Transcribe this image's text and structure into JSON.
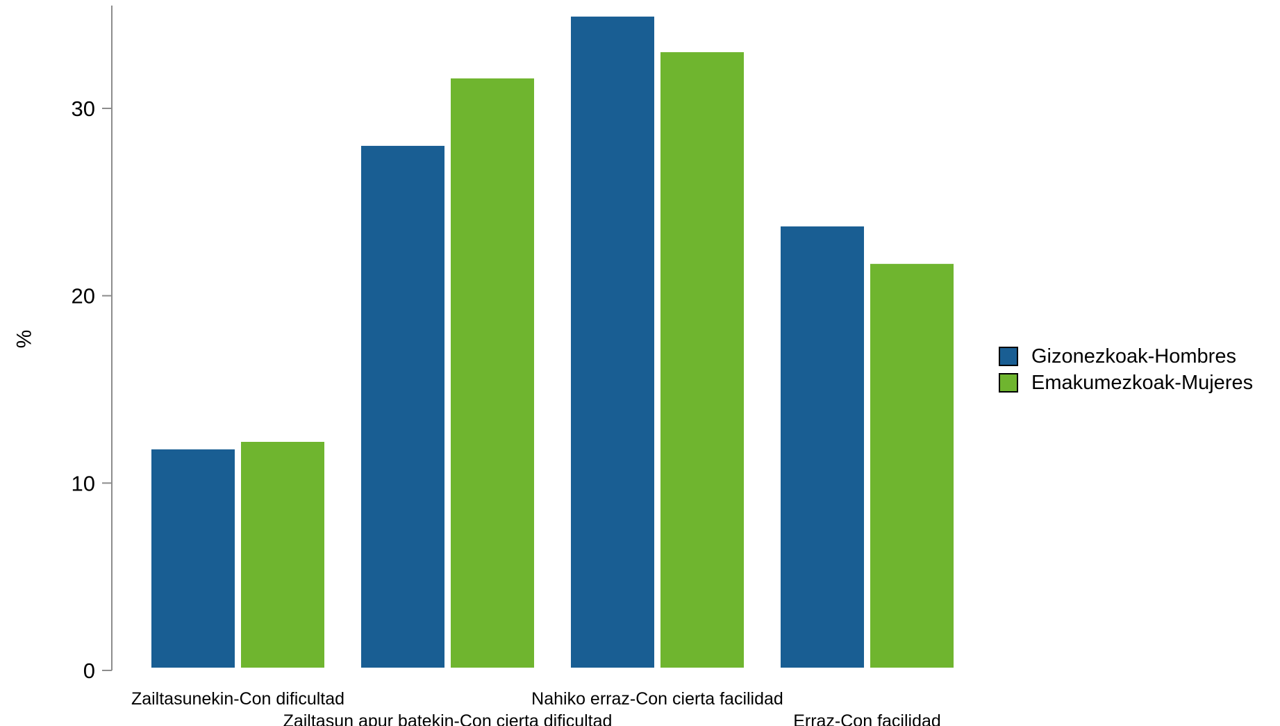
{
  "chart_data": {
    "type": "bar",
    "title": "",
    "xlabel": "",
    "ylabel": "%",
    "ylim": [
      0,
      35
    ],
    "yticks": [
      0,
      10,
      20,
      30
    ],
    "grid": false,
    "legend_position": "right",
    "categories": [
      "Zailtasunekin-Con dificultad",
      "Zailtasun apur batekin-Con cierta dificultad",
      "Nahiko erraz-Con cierta facilidad",
      "Erraz-Con facilidad"
    ],
    "series": [
      {
        "name": "Gizonezkoak-Hombres",
        "color": "#195e93",
        "values": [
          11.8,
          28.0,
          34.9,
          23.7
        ]
      },
      {
        "name": "Emakumezkoak-Mujeres",
        "color": "#6fb52f",
        "values": [
          12.2,
          31.6,
          33.0,
          21.7
        ]
      }
    ]
  }
}
